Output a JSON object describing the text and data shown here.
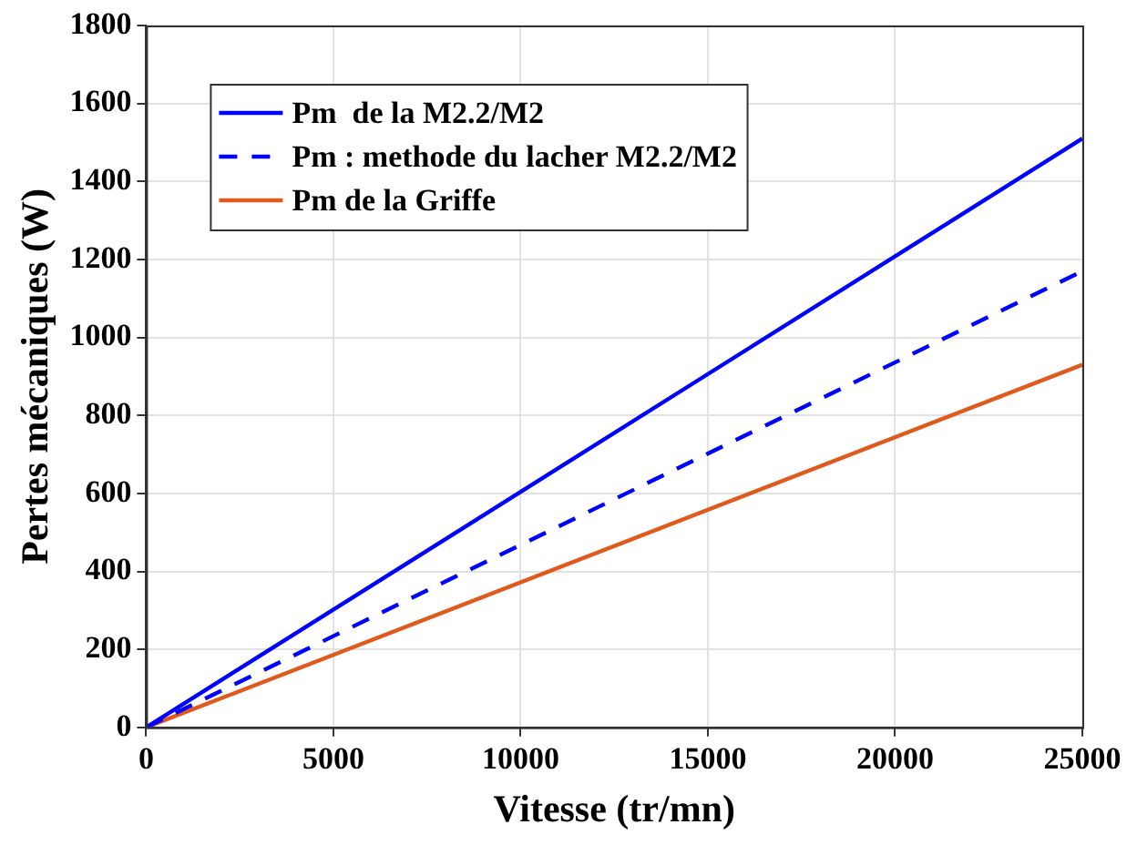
{
  "chart_data": {
    "type": "line",
    "xlabel": "Vitesse (tr/mn)",
    "ylabel": "Pertes mécaniques (W)",
    "x": [
      0,
      25000
    ],
    "series": [
      {
        "name": "Pm  de la M2.2/M2",
        "color": "#0000ff",
        "values": [
          0,
          1510
        ],
        "line_style": "solid"
      },
      {
        "name": "Pm : methode du lacher M2.2/M2",
        "color": "#0000ff",
        "values": [
          0,
          1170
        ],
        "line_style": "dashed"
      },
      {
        "name": "Pm de la Griffe",
        "color": "#e05a1e",
        "values": [
          0,
          930
        ],
        "line_style": "solid"
      }
    ],
    "xlim": [
      0,
      25000
    ],
    "xticks": [
      0,
      5000,
      10000,
      15000,
      20000,
      25000
    ],
    "ylim": [
      0,
      1800
    ],
    "yticks": [
      0,
      200,
      400,
      600,
      800,
      1000,
      1200,
      1400,
      1600,
      1800
    ],
    "grid": true,
    "legend": "top left",
    "marker": "none"
  }
}
